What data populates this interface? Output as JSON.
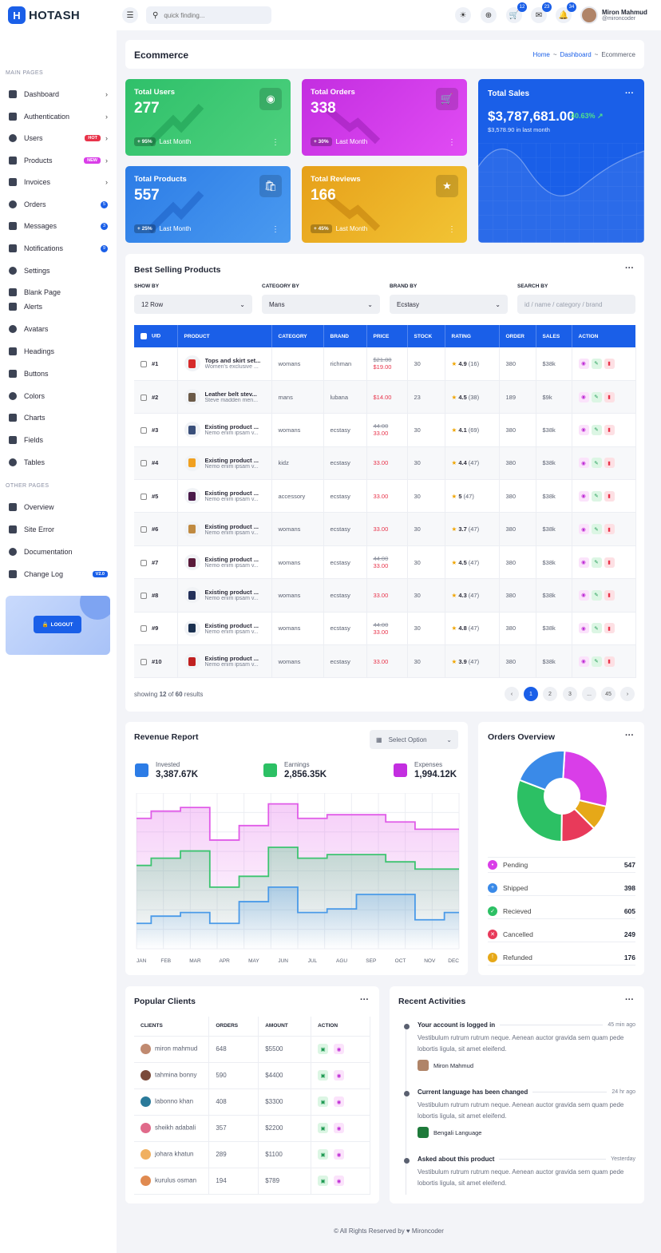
{
  "header": {
    "brand": "HOTASH",
    "search_placeholder": "quick finding...",
    "cart_count": "12",
    "mail_count": "23",
    "notif_count": "34",
    "user_name": "Miron Mahmud",
    "user_handle": "@mironcoder"
  },
  "sidebar": {
    "main_title": "MAIN PAGES",
    "main_items": [
      {
        "label": "Dashboard"
      },
      {
        "label": "Authentication"
      },
      {
        "label": "Users",
        "badge": "HOT"
      },
      {
        "label": "Products",
        "badge": "NEW"
      },
      {
        "label": "Invoices"
      },
      {
        "label": "Orders",
        "count": "5"
      },
      {
        "label": "Messages",
        "count": "3"
      },
      {
        "label": "Notifications",
        "count": "9"
      },
      {
        "label": "Settings"
      },
      {
        "label": "Blank Page"
      },
      {
        "label": "Alerts"
      },
      {
        "label": "Avatars"
      },
      {
        "label": "Headings"
      },
      {
        "label": "Buttons"
      },
      {
        "label": "Colors"
      },
      {
        "label": "Charts"
      },
      {
        "label": "Fields"
      },
      {
        "label": "Tables"
      }
    ],
    "other_title": "OTHER PAGES",
    "other_items": [
      {
        "label": "Overview"
      },
      {
        "label": "Site Error"
      },
      {
        "label": "Documentation"
      },
      {
        "label": "Change Log",
        "badge": "V2.0"
      }
    ],
    "logout": "LOGOUT"
  },
  "page": {
    "title": "Ecommerce",
    "crumb_home": "Home",
    "crumb_sep": "~",
    "crumb_dash": "Dashboard",
    "crumb_cur": "Ecommerce"
  },
  "stats": [
    {
      "label": "Total Users",
      "value": "277",
      "change": "+ 95%",
      "period": "Last Month",
      "icon": "user-icon"
    },
    {
      "label": "Total Orders",
      "value": "338",
      "change": "+ 30%",
      "period": "Last Month",
      "icon": "cart-icon"
    },
    {
      "label": "Total Products",
      "value": "557",
      "change": "+ 25%",
      "period": "Last Month",
      "icon": "bag-icon"
    },
    {
      "label": "Total Reviews",
      "value": "166",
      "change": "+ 45%",
      "period": "Last Month",
      "icon": "star-icon"
    }
  ],
  "sales": {
    "label": "Total Sales",
    "value": "$3,787,681.00",
    "pct": "40.63%",
    "sub": "$3,578.90 in last month"
  },
  "best": {
    "title": "Best Selling Products",
    "filters": [
      {
        "label": "SHOW BY",
        "value": "12 Row"
      },
      {
        "label": "CATEGORY BY",
        "value": "Mans"
      },
      {
        "label": "BRAND BY",
        "value": "Ecstasy"
      },
      {
        "label": "SEARCH BY",
        "placeholder": "id / name / category / brand"
      }
    ],
    "columns": [
      "UID",
      "PRODUCT",
      "CATEGORY",
      "BRAND",
      "PRICE",
      "STOCK",
      "RATING",
      "ORDER",
      "SALES",
      "ACTION"
    ],
    "rows": [
      {
        "uid": "#1",
        "name": "Tops and skirt set...",
        "desc": "Women's exclusive ...",
        "category": "womans",
        "brand": "richman",
        "old": "$21.00",
        "price": "$19.00",
        "stock": "30",
        "rating": "4.9",
        "reviews": "(16)",
        "order": "380",
        "sales": "$38k",
        "color": "#d62b2b"
      },
      {
        "uid": "#2",
        "name": "Leather belt stev...",
        "desc": "Steve madden men...",
        "category": "mans",
        "brand": "lubana",
        "old": "",
        "price": "$14.00",
        "stock": "23",
        "rating": "4.5",
        "reviews": "(38)",
        "order": "189",
        "sales": "$9k",
        "color": "#6b5a48"
      },
      {
        "uid": "#3",
        "name": "Existing product ...",
        "desc": "Nemo enim ipsam v...",
        "category": "womans",
        "brand": "ecstasy",
        "old": "44.00",
        "price": "33.00",
        "stock": "30",
        "rating": "4.1",
        "reviews": "(69)",
        "order": "380",
        "sales": "$38k",
        "color": "#3a4f7a"
      },
      {
        "uid": "#4",
        "name": "Existing product ...",
        "desc": "Nemo enim ipsam v...",
        "category": "kidz",
        "brand": "ecstasy",
        "old": "",
        "price": "33.00",
        "stock": "30",
        "rating": "4.4",
        "reviews": "(47)",
        "order": "380",
        "sales": "$38k",
        "color": "#f0a020"
      },
      {
        "uid": "#5",
        "name": "Existing product ...",
        "desc": "Nemo enim ipsam v...",
        "category": "accessory",
        "brand": "ecstasy",
        "old": "",
        "price": "33.00",
        "stock": "30",
        "rating": "5",
        "reviews": "(47)",
        "order": "380",
        "sales": "$38k",
        "color": "#4a1a4a"
      },
      {
        "uid": "#6",
        "name": "Existing product ...",
        "desc": "Nemo enim ipsam v...",
        "category": "womans",
        "brand": "ecstasy",
        "old": "",
        "price": "33.00",
        "stock": "30",
        "rating": "3.7",
        "reviews": "(47)",
        "order": "380",
        "sales": "$38k",
        "color": "#c08a40"
      },
      {
        "uid": "#7",
        "name": "Existing product ...",
        "desc": "Nemo enim ipsam v...",
        "category": "womans",
        "brand": "ecstasy",
        "old": "44.00",
        "price": "33.00",
        "stock": "30",
        "rating": "4.5",
        "reviews": "(47)",
        "order": "380",
        "sales": "$38k",
        "color": "#5a1a3a"
      },
      {
        "uid": "#8",
        "name": "Existing product ...",
        "desc": "Nemo enim ipsam v...",
        "category": "womans",
        "brand": "ecstasy",
        "old": "",
        "price": "33.00",
        "stock": "30",
        "rating": "4.3",
        "reviews": "(47)",
        "order": "380",
        "sales": "$38k",
        "color": "#23305a"
      },
      {
        "uid": "#9",
        "name": "Existing product ...",
        "desc": "Nemo enim ipsam v...",
        "category": "womans",
        "brand": "ecstasy",
        "old": "44.00",
        "price": "33.00",
        "stock": "30",
        "rating": "4.8",
        "reviews": "(47)",
        "order": "380",
        "sales": "$38k",
        "color": "#1a3050"
      },
      {
        "uid": "#10",
        "name": "Existing product ...",
        "desc": "Nemo enim ipsam v...",
        "category": "womans",
        "brand": "ecstasy",
        "old": "",
        "price": "33.00",
        "stock": "30",
        "rating": "3.9",
        "reviews": "(47)",
        "order": "380",
        "sales": "$38k",
        "color": "#c02020"
      }
    ],
    "showing_pre": "showing",
    "showing_n": "12",
    "showing_of": "of",
    "showing_total": "60",
    "showing_post": "results",
    "pages": [
      "1",
      "2",
      "3",
      "...",
      "45"
    ]
  },
  "revenue": {
    "title": "Revenue Report",
    "select": "Select Option",
    "kpis": [
      {
        "label": "Invested",
        "value": "3,387.67K"
      },
      {
        "label": "Earnings",
        "value": "2,856.35K"
      },
      {
        "label": "Expenses",
        "value": "1,994.12K"
      }
    ]
  },
  "chart_data": {
    "type": "area",
    "categories": [
      "JAN",
      "FEB",
      "MAR",
      "APR",
      "MAY",
      "JUN",
      "JUL",
      "AGU",
      "SEP",
      "OCT",
      "NOV",
      "DEC"
    ],
    "series": [
      {
        "values": [
          180,
          190,
          195,
          150,
          170,
          200,
          180,
          185,
          185,
          175,
          165,
          165
        ],
        "color": "#e05ce8"
      },
      {
        "values": [
          115,
          125,
          135,
          85,
          100,
          140,
          125,
          130,
          130,
          120,
          110,
          110
        ],
        "color": "#3cc470"
      },
      {
        "values": [
          35,
          45,
          50,
          35,
          65,
          85,
          50,
          55,
          75,
          75,
          40,
          50
        ],
        "color": "#4a9ae8"
      }
    ],
    "ylim": [
      0,
      215
    ]
  },
  "orders": {
    "title": "Orders Overview",
    "items": [
      {
        "label": "Pending",
        "value": "547",
        "color": "#d93ee8"
      },
      {
        "label": "Shipped",
        "value": "398",
        "color": "#3a8ae8"
      },
      {
        "label": "Recieved",
        "value": "605",
        "color": "#2cc064"
      },
      {
        "label": "Cancelled",
        "value": "249",
        "color": "#e83a5a"
      },
      {
        "label": "Refunded",
        "value": "176",
        "color": "#e6a818"
      }
    ]
  },
  "clients": {
    "title": "Popular Clients",
    "columns": [
      "CLIENTS",
      "ORDERS",
      "AMOUNT",
      "ACTION"
    ],
    "rows": [
      {
        "name": "miron mahmud",
        "orders": "648",
        "amount": "$5500",
        "color": "#c08a70"
      },
      {
        "name": "tahmina bonny",
        "orders": "590",
        "amount": "$4400",
        "color": "#7a4a3a"
      },
      {
        "name": "labonno khan",
        "orders": "408",
        "amount": "$3300",
        "color": "#2a7a9a"
      },
      {
        "name": "sheikh adabali",
        "orders": "357",
        "amount": "$2200",
        "color": "#e06a8a"
      },
      {
        "name": "johara khatun",
        "orders": "289",
        "amount": "$1100",
        "color": "#f0b060"
      },
      {
        "name": "kurulus osman",
        "orders": "194",
        "amount": "$789",
        "color": "#e08a50"
      }
    ]
  },
  "activities": {
    "title": "Recent Activities",
    "items": [
      {
        "title": "Your account is logged in",
        "time": "45 min ago",
        "desc": "Vestibulum rutrum rutrum neque. Aenean auctor gravida sem quam pede lobortis ligula, sit amet eleifend.",
        "user": "Miron Mahmud"
      },
      {
        "title": "Current language has been changed",
        "time": "24 hr ago",
        "desc": "Vestibulum rutrum rutrum neque. Aenean auctor gravida sem quam pede lobortis ligula, sit amet eleifend.",
        "user": "Bengali Language"
      },
      {
        "title": "Asked about this product",
        "time": "Yesterday",
        "desc": "Vestibulum rutrum rutrum neque. Aenean auctor gravida sem quam pede lobortis ligula, sit amet eleifend.",
        "user": ""
      }
    ]
  },
  "footer": {
    "text": "© All Rights Reserved by ♥ Mironcoder"
  }
}
